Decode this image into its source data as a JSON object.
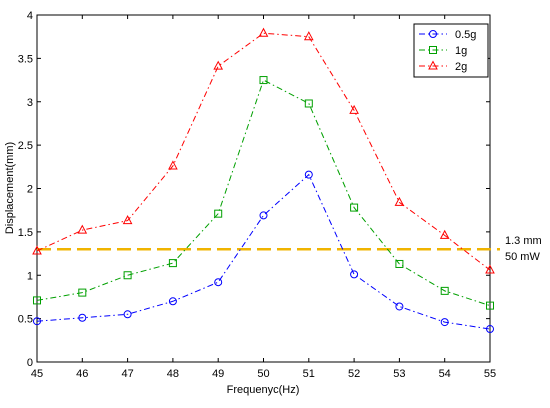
{
  "chart_data": {
    "type": "line",
    "xlabel": "Frequenyc(Hz)",
    "ylabel": "Displacement(mm)",
    "xlim": [
      45,
      55
    ],
    "ylim": [
      0,
      4
    ],
    "x_ticks": [
      "45",
      "46",
      "47",
      "48",
      "49",
      "50",
      "51",
      "52",
      "53",
      "54",
      "55"
    ],
    "y_ticks": [
      "0",
      "0.5",
      "1",
      "1.5",
      "2",
      "2.5",
      "3",
      "3.5",
      "4"
    ],
    "x": [
      45,
      46,
      47,
      48,
      49,
      50,
      51,
      52,
      53,
      54,
      55
    ],
    "series": [
      {
        "name": "0.5g",
        "marker": "circle",
        "color": "#0000ff",
        "values": [
          0.47,
          0.51,
          0.55,
          0.7,
          0.92,
          1.69,
          2.16,
          1.01,
          0.64,
          0.46,
          0.38
        ]
      },
      {
        "name": "1g",
        "marker": "square",
        "color": "#00a000",
        "values": [
          0.71,
          0.8,
          1.0,
          1.14,
          1.71,
          3.25,
          2.98,
          1.78,
          1.13,
          0.82,
          0.65
        ]
      },
      {
        "name": "2g",
        "marker": "triangle",
        "color": "#ff0000",
        "values": [
          1.28,
          1.52,
          1.63,
          2.26,
          3.41,
          3.79,
          3.75,
          2.9,
          1.84,
          1.46,
          1.06
        ]
      }
    ],
    "reference_line": {
      "y": 1.3,
      "color": "#f0b400"
    },
    "annotation": {
      "line1": "1.3 mm",
      "line2": "50 mW"
    },
    "legend_position": "top-right",
    "grid": false
  }
}
